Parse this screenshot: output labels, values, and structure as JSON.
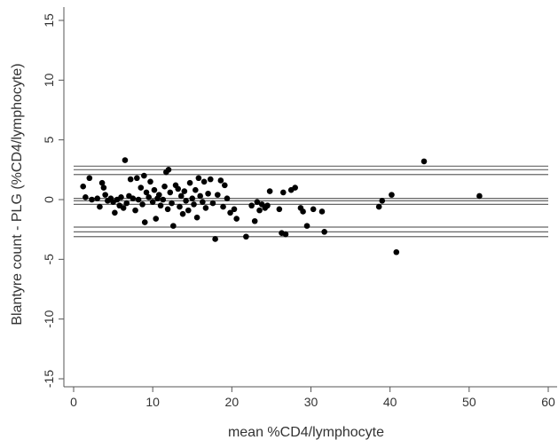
{
  "chart_data": {
    "type": "scatter",
    "xlabel": "mean %CD4/lymphocyte",
    "ylabel": "Blantyre count - PLG (%CD4/lymphocyte)",
    "xlim": [
      0,
      60
    ],
    "ylim": [
      -16,
      16
    ],
    "xticks": [
      0,
      10,
      20,
      30,
      40,
      50,
      60
    ],
    "yticks": [
      -15,
      -10,
      -5,
      0,
      5,
      10,
      15
    ],
    "grid": false,
    "reference_lines": [
      2.8,
      2.5,
      2.1,
      0.1,
      -0.1,
      -0.4,
      -2.3,
      -2.7,
      -3.1
    ],
    "colors": {
      "points": "#000000",
      "lines": "#666666",
      "axis": "#555555"
    },
    "points": [
      [
        1.2,
        1.1
      ],
      [
        1.5,
        0.2
      ],
      [
        2.0,
        1.8
      ],
      [
        2.3,
        0.0
      ],
      [
        3.0,
        0.1
      ],
      [
        3.3,
        -0.6
      ],
      [
        3.6,
        1.4
      ],
      [
        3.8,
        1.0
      ],
      [
        4.0,
        0.4
      ],
      [
        4.3,
        -0.1
      ],
      [
        4.7,
        0.1
      ],
      [
        5.0,
        -0.2
      ],
      [
        5.2,
        -1.1
      ],
      [
        5.5,
        0.0
      ],
      [
        5.8,
        -0.5
      ],
      [
        6.0,
        0.2
      ],
      [
        6.3,
        -0.7
      ],
      [
        6.5,
        3.3
      ],
      [
        6.7,
        -0.3
      ],
      [
        7.0,
        0.3
      ],
      [
        7.2,
        1.7
      ],
      [
        7.5,
        0.1
      ],
      [
        7.8,
        -0.9
      ],
      [
        8.0,
        1.8
      ],
      [
        8.2,
        0.0
      ],
      [
        8.5,
        1.0
      ],
      [
        8.7,
        -0.4
      ],
      [
        8.9,
        2.0
      ],
      [
        9.0,
        -1.9
      ],
      [
        9.2,
        0.6
      ],
      [
        9.5,
        0.2
      ],
      [
        9.7,
        1.5
      ],
      [
        10.0,
        -0.2
      ],
      [
        10.2,
        0.8
      ],
      [
        10.4,
        -1.6
      ],
      [
        10.6,
        0.1
      ],
      [
        10.8,
        0.4
      ],
      [
        11.0,
        -0.5
      ],
      [
        11.3,
        0.0
      ],
      [
        11.5,
        1.1
      ],
      [
        11.7,
        2.3
      ],
      [
        11.9,
        -0.8
      ],
      [
        12.0,
        2.5
      ],
      [
        12.2,
        0.6
      ],
      [
        12.4,
        -0.3
      ],
      [
        12.6,
        -2.2
      ],
      [
        12.9,
        1.2
      ],
      [
        13.2,
        0.9
      ],
      [
        13.4,
        -0.6
      ],
      [
        13.6,
        0.3
      ],
      [
        13.8,
        -1.2
      ],
      [
        14.0,
        0.7
      ],
      [
        14.2,
        -0.1
      ],
      [
        14.5,
        -0.9
      ],
      [
        14.7,
        1.4
      ],
      [
        15.0,
        0.1
      ],
      [
        15.2,
        -0.4
      ],
      [
        15.4,
        0.8
      ],
      [
        15.6,
        -1.5
      ],
      [
        15.8,
        1.8
      ],
      [
        16.0,
        0.3
      ],
      [
        16.3,
        -0.2
      ],
      [
        16.5,
        1.5
      ],
      [
        16.7,
        -0.7
      ],
      [
        17.0,
        0.5
      ],
      [
        17.3,
        1.7
      ],
      [
        17.6,
        -0.3
      ],
      [
        17.9,
        -3.3
      ],
      [
        18.2,
        0.4
      ],
      [
        18.6,
        1.6
      ],
      [
        18.9,
        -0.6
      ],
      [
        19.1,
        1.2
      ],
      [
        19.4,
        0.1
      ],
      [
        19.8,
        -1.1
      ],
      [
        20.3,
        -0.8
      ],
      [
        20.6,
        -1.6
      ],
      [
        21.8,
        -3.1
      ],
      [
        22.5,
        -0.5
      ],
      [
        22.9,
        -1.8
      ],
      [
        23.2,
        -0.2
      ],
      [
        23.5,
        -0.9
      ],
      [
        23.8,
        -0.4
      ],
      [
        24.2,
        -0.7
      ],
      [
        24.5,
        -0.5
      ],
      [
        24.8,
        0.7
      ],
      [
        26.0,
        -0.8
      ],
      [
        26.3,
        -2.8
      ],
      [
        26.5,
        0.6
      ],
      [
        26.8,
        -2.9
      ],
      [
        27.5,
        0.8
      ],
      [
        28.0,
        1.0
      ],
      [
        28.7,
        -0.7
      ],
      [
        29.0,
        -1.0
      ],
      [
        29.5,
        -2.2
      ],
      [
        30.3,
        -0.8
      ],
      [
        31.4,
        -1.0
      ],
      [
        31.7,
        -2.7
      ],
      [
        38.6,
        -0.6
      ],
      [
        39.0,
        -0.1
      ],
      [
        40.2,
        0.4
      ],
      [
        40.8,
        -4.4
      ],
      [
        44.3,
        3.2
      ],
      [
        51.3,
        0.3
      ]
    ]
  }
}
